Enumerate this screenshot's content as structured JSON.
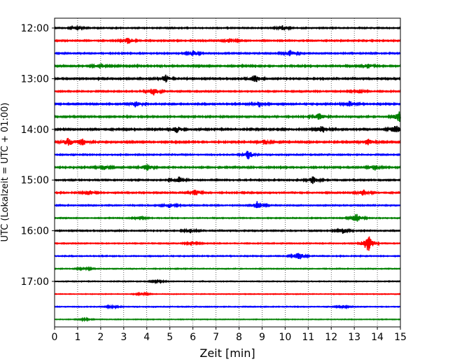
{
  "chart_data": {
    "type": "line",
    "title": "",
    "xlabel": "Zeit  [min]",
    "ylabel": "UTC (Lokalzeit = UTC + 01:00)",
    "xlim": [
      0,
      15
    ],
    "x_ticks": [
      "0",
      "1",
      "2",
      "3",
      "4",
      "5",
      "6",
      "7",
      "8",
      "9",
      "10",
      "11",
      "12",
      "13",
      "14",
      "15"
    ],
    "y_ticks": [
      "12:00",
      "13:00",
      "14:00",
      "15:00",
      "16:00",
      "17:00"
    ],
    "grid": "vertical dotted",
    "line_colors": [
      "#000000",
      "#ff0000",
      "#0000ff",
      "#008000"
    ],
    "traces": [
      {
        "start": "12:00",
        "color": "#000000",
        "amplitude": 0.35,
        "events": [
          {
            "x": 1.0,
            "a": 0.6
          },
          {
            "x": 9.9,
            "a": 0.8
          }
        ]
      },
      {
        "start": "12:15",
        "color": "#ff0000",
        "amplitude": 0.4,
        "events": [
          {
            "x": 3.2,
            "a": 0.9
          },
          {
            "x": 7.6,
            "a": 0.6
          }
        ]
      },
      {
        "start": "12:30",
        "color": "#0000ff",
        "amplitude": 0.4,
        "events": [
          {
            "x": 6.0,
            "a": 0.8
          },
          {
            "x": 10.2,
            "a": 0.9
          }
        ]
      },
      {
        "start": "12:45",
        "color": "#008000",
        "amplitude": 0.5,
        "events": [
          {
            "x": 2.0,
            "a": 0.7
          },
          {
            "x": 13.6,
            "a": 0.7
          }
        ]
      },
      {
        "start": "13:00",
        "color": "#000000",
        "amplitude": 0.45,
        "events": [
          {
            "x": 4.8,
            "a": 1.1
          },
          {
            "x": 8.7,
            "a": 1.1
          }
        ]
      },
      {
        "start": "13:15",
        "color": "#ff0000",
        "amplitude": 0.4,
        "events": [
          {
            "x": 4.3,
            "a": 1.2
          },
          {
            "x": 13.2,
            "a": 0.6
          }
        ]
      },
      {
        "start": "13:30",
        "color": "#0000ff",
        "amplitude": 0.45,
        "events": [
          {
            "x": 3.5,
            "a": 0.8
          },
          {
            "x": 8.9,
            "a": 0.9
          },
          {
            "x": 12.8,
            "a": 0.9
          }
        ]
      },
      {
        "start": "13:45",
        "color": "#008000",
        "amplitude": 0.45,
        "events": [
          {
            "x": 11.5,
            "a": 1.0
          },
          {
            "x": 14.95,
            "a": 1.5
          }
        ]
      },
      {
        "start": "14:00",
        "color": "#000000",
        "amplitude": 0.5,
        "events": [
          {
            "x": 5.3,
            "a": 0.9
          },
          {
            "x": 11.6,
            "a": 1.1
          },
          {
            "x": 14.8,
            "a": 1.3
          }
        ]
      },
      {
        "start": "14:15",
        "color": "#ff0000",
        "amplitude": 0.5,
        "events": [
          {
            "x": 0.6,
            "a": 1.2
          },
          {
            "x": 1.2,
            "a": 1.0
          },
          {
            "x": 9.1,
            "a": 0.8
          },
          {
            "x": 13.6,
            "a": 1.0
          }
        ]
      },
      {
        "start": "14:30",
        "color": "#0000ff",
        "amplitude": 0.35,
        "events": [
          {
            "x": 8.4,
            "a": 1.3
          }
        ]
      },
      {
        "start": "14:45",
        "color": "#008000",
        "amplitude": 0.45,
        "events": [
          {
            "x": 2.1,
            "a": 0.8
          },
          {
            "x": 4.0,
            "a": 1.0
          },
          {
            "x": 13.9,
            "a": 0.8
          }
        ]
      },
      {
        "start": "15:00",
        "color": "#000000",
        "amplitude": 0.4,
        "events": [
          {
            "x": 5.4,
            "a": 0.9
          },
          {
            "x": 11.2,
            "a": 1.0
          }
        ]
      },
      {
        "start": "15:15",
        "color": "#ff0000",
        "amplitude": 0.4,
        "events": [
          {
            "x": 1.5,
            "a": 0.8
          },
          {
            "x": 6.1,
            "a": 0.9
          },
          {
            "x": 13.4,
            "a": 1.0
          }
        ]
      },
      {
        "start": "15:30",
        "color": "#0000ff",
        "amplitude": 0.35,
        "events": [
          {
            "x": 5.0,
            "a": 0.8
          },
          {
            "x": 8.8,
            "a": 1.2
          }
        ]
      },
      {
        "start": "15:45",
        "color": "#008000",
        "amplitude": 0.3,
        "events": [
          {
            "x": 3.7,
            "a": 0.6
          },
          {
            "x": 13.1,
            "a": 1.3
          }
        ]
      },
      {
        "start": "16:00",
        "color": "#000000",
        "amplitude": 0.35,
        "events": [
          {
            "x": 5.9,
            "a": 0.6
          },
          {
            "x": 12.5,
            "a": 0.8
          }
        ]
      },
      {
        "start": "16:15",
        "color": "#ff0000",
        "amplitude": 0.3,
        "events": [
          {
            "x": 13.6,
            "a": 2.6
          },
          {
            "x": 6.0,
            "a": 0.5
          }
        ]
      },
      {
        "start": "16:30",
        "color": "#0000ff",
        "amplitude": 0.3,
        "events": [
          {
            "x": 10.6,
            "a": 1.2
          }
        ]
      },
      {
        "start": "16:45",
        "color": "#008000",
        "amplitude": 0.25,
        "events": [
          {
            "x": 1.3,
            "a": 0.5
          }
        ]
      },
      {
        "start": "17:00",
        "color": "#000000",
        "amplitude": 0.25,
        "events": [
          {
            "x": 4.5,
            "a": 0.4
          }
        ]
      },
      {
        "start": "17:15",
        "color": "#ff0000",
        "amplitude": 0.2,
        "events": [
          {
            "x": 3.8,
            "a": 0.5
          }
        ]
      },
      {
        "start": "17:30",
        "color": "#0000ff",
        "amplitude": 0.25,
        "events": [
          {
            "x": 2.5,
            "a": 0.4
          },
          {
            "x": 12.5,
            "a": 0.4
          }
        ]
      },
      {
        "start": "17:45",
        "color": "#008000",
        "amplitude": 0.2,
        "events": [
          {
            "x": 1.3,
            "a": 0.3
          }
        ]
      }
    ]
  }
}
